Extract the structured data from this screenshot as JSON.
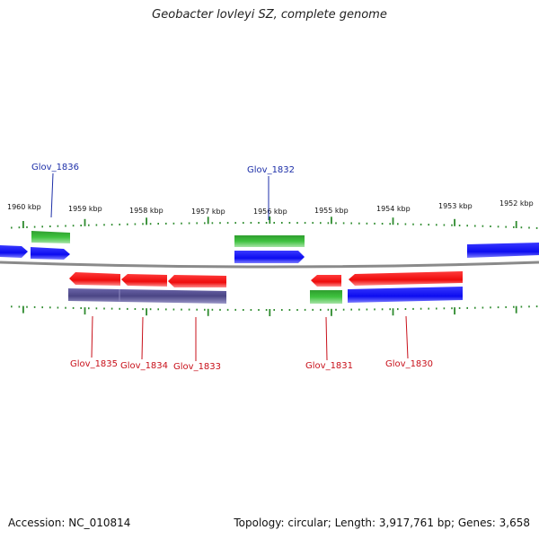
{
  "title": "Geobacter lovleyi SZ, complete genome",
  "footer": {
    "accession": "Accession: NC_010814",
    "summary": "Topology: circular; Length: 3,917,761 bp; Genes: 3,658"
  },
  "kbp_labels": [
    "1960 kbp",
    "1959 kbp",
    "1958 kbp",
    "1957 kbp",
    "1956 kbp",
    "1955 kbp",
    "1954 kbp",
    "1953 kbp",
    "1952 kbp"
  ],
  "gene_labels": {
    "glov_1836": "Glov_1836",
    "glov_1832": "Glov_1832",
    "glov_1835": "Glov_1835",
    "glov_1834": "Glov_1834",
    "glov_1833": "Glov_1833",
    "glov_1831": "Glov_1831",
    "glov_1830": "Glov_1830"
  },
  "colors": {
    "forward_cds": "#1a1aff",
    "reverse_cds": "#ff1a1a",
    "forward_gene": "#33b533",
    "reverse_gene": "#2f9e3a",
    "reverse_extent": "#4f4a8c",
    "backbone": "#8a8a8a",
    "ticks": "#2e8b2e",
    "forward_label": "#1d2fa8",
    "reverse_label": "#c8101a"
  }
}
